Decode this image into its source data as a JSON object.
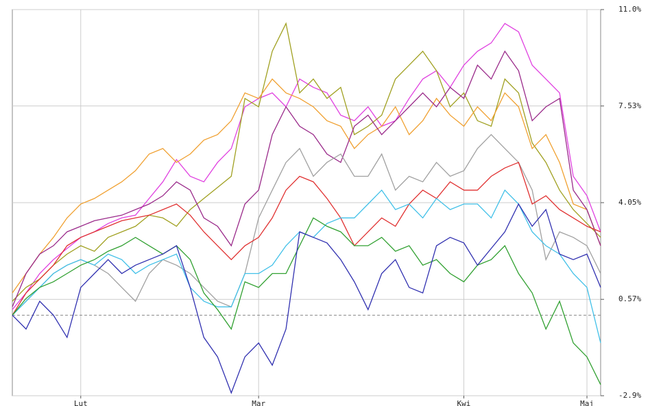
{
  "chart_data": {
    "type": "line",
    "xlim": [
      0,
      43
    ],
    "xticks": [
      {
        "value": 5,
        "label": "Lut"
      },
      {
        "value": 18,
        "label": "Mar"
      },
      {
        "value": 33,
        "label": "Kwi"
      },
      {
        "value": 42,
        "label": "Maj"
      }
    ],
    "ylim": [
      -2.9,
      11.0
    ],
    "yticks": [
      {
        "value": -2.9,
        "label": "-2.9%"
      },
      {
        "value": 0.57,
        "label": "0.57%"
      },
      {
        "value": 4.05,
        "label": "4.05%"
      },
      {
        "value": 7.53,
        "label": "7.53%"
      },
      {
        "value": 11.0,
        "label": "11.0%"
      }
    ],
    "baseline": 0,
    "grid": true,
    "series": [
      {
        "color": "#e040e0",
        "values": [
          0.2,
          0.8,
          1.5,
          2.0,
          2.4,
          2.8,
          3.0,
          3.3,
          3.5,
          3.6,
          4.2,
          4.8,
          5.6,
          5.0,
          4.8,
          5.5,
          6.0,
          7.5,
          7.8,
          8.0,
          7.5,
          8.5,
          8.2,
          8.0,
          7.2,
          7.0,
          7.5,
          6.8,
          7.0,
          7.8,
          8.5,
          8.8,
          8.2,
          9.0,
          9.5,
          9.8,
          10.5,
          10.2,
          9.0,
          8.5,
          8.0,
          5.0,
          4.3,
          3.0
        ]
      },
      {
        "color": "#a0a020",
        "values": [
          0.5,
          1.0,
          1.3,
          1.8,
          2.2,
          2.5,
          2.3,
          2.8,
          3.0,
          3.2,
          3.6,
          3.5,
          3.2,
          3.8,
          4.2,
          4.6,
          5.0,
          7.8,
          7.5,
          9.5,
          10.5,
          8.0,
          8.5,
          7.8,
          8.2,
          6.5,
          6.8,
          7.2,
          8.5,
          9.0,
          9.5,
          8.8,
          7.5,
          8.0,
          7.0,
          6.8,
          8.5,
          8.0,
          6.2,
          5.5,
          4.5,
          3.8,
          3.3,
          2.8
        ]
      },
      {
        "color": "#f0a030",
        "values": [
          0.8,
          1.5,
          2.2,
          2.8,
          3.5,
          4.0,
          4.2,
          4.5,
          4.8,
          5.2,
          5.8,
          6.0,
          5.5,
          5.8,
          6.3,
          6.5,
          7.0,
          8.0,
          7.8,
          8.5,
          8.0,
          7.8,
          7.5,
          7.0,
          6.8,
          6.0,
          6.5,
          6.8,
          7.5,
          6.5,
          7.0,
          7.8,
          7.2,
          6.8,
          7.5,
          7.0,
          8.0,
          7.5,
          6.0,
          6.5,
          5.5,
          4.0,
          3.8,
          2.5
        ]
      },
      {
        "color": "#9a2a8a",
        "values": [
          0.3,
          1.5,
          2.2,
          2.5,
          3.0,
          3.2,
          3.4,
          3.5,
          3.6,
          3.8,
          4.0,
          4.3,
          4.8,
          4.5,
          3.5,
          3.2,
          2.5,
          4.0,
          4.5,
          6.5,
          7.5,
          6.8,
          6.5,
          5.8,
          5.5,
          6.8,
          7.2,
          6.5,
          7.0,
          7.5,
          8.0,
          7.5,
          8.2,
          7.8,
          9.0,
          8.5,
          9.5,
          8.8,
          7.0,
          7.5,
          7.8,
          4.5,
          3.8,
          2.5
        ]
      },
      {
        "color": "#a0a0a0",
        "values": [
          0.0,
          0.5,
          1.0,
          1.5,
          1.8,
          2.0,
          1.8,
          1.5,
          1.0,
          0.5,
          1.5,
          2.0,
          1.8,
          1.5,
          1.0,
          0.5,
          0.3,
          1.5,
          3.5,
          4.5,
          5.5,
          6.0,
          5.0,
          5.5,
          5.8,
          5.0,
          5.0,
          5.8,
          4.5,
          5.0,
          4.8,
          5.5,
          5.0,
          5.2,
          6.0,
          6.5,
          6.0,
          5.5,
          4.5,
          2.0,
          3.0,
          2.8,
          2.5,
          1.5
        ]
      },
      {
        "color": "#e03030",
        "values": [
          0.0,
          0.8,
          1.3,
          1.8,
          2.5,
          2.8,
          3.0,
          3.2,
          3.4,
          3.5,
          3.6,
          3.8,
          4.0,
          3.6,
          3.0,
          2.5,
          2.0,
          2.5,
          2.8,
          3.5,
          4.5,
          5.0,
          4.8,
          4.2,
          3.5,
          2.5,
          3.0,
          3.5,
          3.2,
          4.0,
          4.5,
          4.2,
          4.8,
          4.5,
          4.5,
          5.0,
          5.3,
          5.5,
          4.0,
          4.3,
          3.8,
          3.5,
          3.2,
          3.0
        ]
      },
      {
        "color": "#40c0e8",
        "values": [
          0.0,
          0.5,
          1.0,
          1.5,
          1.8,
          2.0,
          1.8,
          2.2,
          2.0,
          1.5,
          1.8,
          2.0,
          2.2,
          1.0,
          0.5,
          0.3,
          0.3,
          1.5,
          1.5,
          1.8,
          2.5,
          3.0,
          2.8,
          3.3,
          3.5,
          3.5,
          4.0,
          4.5,
          3.8,
          4.0,
          3.5,
          4.2,
          3.8,
          4.0,
          4.0,
          3.5,
          4.5,
          4.0,
          3.0,
          2.5,
          2.2,
          1.5,
          1.0,
          -1.0
        ]
      },
      {
        "color": "#30a030",
        "values": [
          0.0,
          0.6,
          1.0,
          1.2,
          1.5,
          1.8,
          2.0,
          2.3,
          2.5,
          2.8,
          2.5,
          2.2,
          2.5,
          2.0,
          0.8,
          0.2,
          -0.5,
          1.2,
          1.0,
          1.5,
          1.5,
          2.5,
          3.5,
          3.2,
          3.0,
          2.5,
          2.5,
          2.8,
          2.3,
          2.5,
          1.8,
          2.0,
          1.5,
          1.2,
          1.8,
          2.0,
          2.5,
          1.5,
          0.8,
          -0.5,
          0.5,
          -1.0,
          -1.5,
          -2.5
        ]
      },
      {
        "color": "#3030b0",
        "values": [
          0.0,
          -0.5,
          0.5,
          0.0,
          -0.8,
          1.0,
          1.5,
          2.0,
          1.5,
          1.8,
          2.0,
          2.2,
          2.5,
          1.0,
          -0.8,
          -1.5,
          -2.8,
          -1.5,
          -1.0,
          -1.8,
          -0.5,
          3.0,
          2.8,
          2.6,
          2.0,
          1.2,
          0.2,
          1.5,
          2.0,
          1.0,
          0.8,
          2.5,
          2.8,
          2.6,
          1.8,
          2.4,
          3.0,
          4.0,
          3.2,
          3.8,
          2.2,
          2.0,
          2.2,
          1.0
        ]
      }
    ]
  }
}
